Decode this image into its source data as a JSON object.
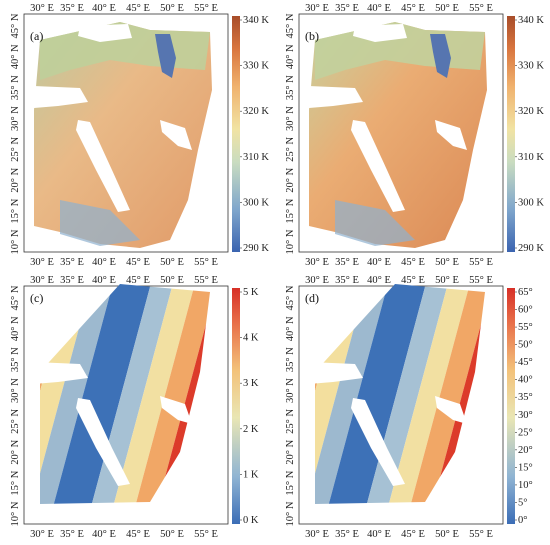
{
  "panels": [
    {
      "label": "(a)",
      "type": "temperature",
      "colorbar": {
        "ticks": [
          "340 K",
          "330 K",
          "320 K",
          "310 K",
          "300 K",
          "290 K"
        ]
      },
      "xticks": [
        "30° E",
        "35° E",
        "40° E",
        "45° E",
        "50° E",
        "55° E"
      ],
      "yticks": [
        "45° N",
        "40° N",
        "35° N",
        "30° N",
        "25° N",
        "20° N",
        "15° N",
        "10° N"
      ]
    },
    {
      "label": "(b)",
      "type": "temperature",
      "colorbar": {
        "ticks": [
          "340 K",
          "330 K",
          "320 K",
          "310 K",
          "300 K",
          "290 K"
        ]
      },
      "xticks": [
        "30° E",
        "35° E",
        "40° E",
        "45° E",
        "50° E",
        "55° E"
      ],
      "yticks": [
        "45° N",
        "40° N",
        "35° N",
        "30° N",
        "25° N",
        "20° N",
        "15° N",
        "10° N"
      ]
    },
    {
      "label": "(c)",
      "type": "difference",
      "colorbar": {
        "ticks": [
          "5 K",
          "4 K",
          "3 K",
          "2 K",
          "1 K",
          "0 K"
        ]
      },
      "xticks": [
        "30° E",
        "35° E",
        "40° E",
        "45° E",
        "50° E",
        "55° E"
      ],
      "yticks": [
        "45° N",
        "40° N",
        "35° N",
        "30° N",
        "25° N",
        "20° N",
        "15° N",
        "10° N"
      ]
    },
    {
      "label": "(d)",
      "type": "angle",
      "colorbar": {
        "ticks": [
          "65°",
          "60°",
          "55°",
          "50°",
          "45°",
          "40°",
          "35°",
          "30°",
          "25°",
          "20°",
          "15°",
          "10°",
          "5°",
          "0°"
        ]
      },
      "xticks": [
        "30° E",
        "35° E",
        "40° E",
        "45° E",
        "50° E",
        "55° E"
      ],
      "yticks": [
        "45° N",
        "40° N",
        "35° N",
        "30° N",
        "25° N",
        "20° N",
        "15° N",
        "10° N"
      ]
    }
  ],
  "colors": {
    "temp_scale": [
      "#4a6fb5",
      "#8fb2cf",
      "#d8e3b8",
      "#f3d28c",
      "#eaa05a",
      "#c65a32",
      "#a64a2a"
    ],
    "diff_scale": [
      "#3b6db6",
      "#8fb4d3",
      "#e9e6b4",
      "#f3c27a",
      "#e8704a",
      "#d73027"
    ],
    "angle_scale": [
      "#3b6db6",
      "#8fb4d3",
      "#e9e6b4",
      "#f3c27a",
      "#e8704a",
      "#d73027"
    ],
    "water": "#ffffff",
    "panel_bg": "#ffffff"
  }
}
